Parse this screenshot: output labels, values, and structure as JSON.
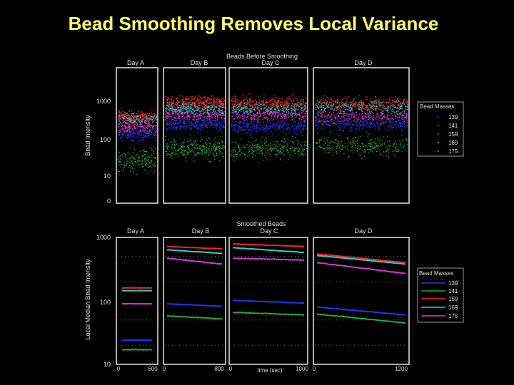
{
  "slide": {
    "title": "Bead Smoothing Removes Local Variance"
  },
  "colors": {
    "background": "#000000",
    "title": "#ffff66",
    "frame": "#e6e6e6",
    "s130": "#2233ff",
    "s141": "#22aa33",
    "s159": "#ff2222",
    "s169": "#33cccc",
    "s175": "#dd33dd"
  },
  "chart_data": [
    {
      "type": "scatter",
      "title": "Beads Before Smoothing",
      "ylabel": "Bead Intensity",
      "yscale": "log",
      "ylim": [
        0,
        3000
      ],
      "yticks": [
        "1000",
        "100",
        "10",
        "0"
      ],
      "panels": [
        "Day A",
        "Day B",
        "Day C",
        "Day D"
      ],
      "legend": {
        "title": "Bead Masses",
        "position": "right",
        "entries": [
          "139",
          "141",
          "159",
          "169",
          "175"
        ]
      },
      "series": [
        {
          "name": "139",
          "color": "#2233ff",
          "levels": [
            140,
            250,
            220,
            260
          ]
        },
        {
          "name": "141",
          "color": "#22aa33",
          "levels": [
            30,
            60,
            60,
            70
          ]
        },
        {
          "name": "159",
          "color": "#ff2222",
          "levels": [
            400,
            950,
            900,
            850
          ]
        },
        {
          "name": "169",
          "color": "#33cccc",
          "levels": [
            350,
            650,
            650,
            720
          ]
        },
        {
          "name": "175",
          "color": "#dd33dd",
          "levels": [
            220,
            450,
            430,
            400
          ]
        }
      ]
    },
    {
      "type": "line",
      "title": "Smoothed Beads",
      "ylabel": "Local Median Bead Intensity",
      "xlabel": "time (sec)",
      "yscale": "log",
      "ylim": [
        10,
        1000
      ],
      "yticks": [
        "1000",
        "100",
        "10"
      ],
      "panels": [
        "Day A",
        "Day B",
        "Day C",
        "Day D"
      ],
      "panel_xticks": [
        [
          "0",
          "600"
        ],
        [
          "0",
          "800"
        ],
        [
          "0",
          "1000"
        ],
        [
          "0",
          "1200"
        ]
      ],
      "legend": {
        "title": "Bead Masses",
        "position": "right",
        "entries": [
          "139",
          "141",
          "159",
          "169",
          "175"
        ]
      },
      "series": [
        {
          "name": "139",
          "color": "#2233ff",
          "values": [
            [
              24,
              24
            ],
            [
              90,
              82
            ],
            [
              102,
              92
            ],
            [
              80,
              60
            ]
          ]
        },
        {
          "name": "141",
          "color": "#22aa33",
          "values": [
            [
              17,
              17
            ],
            [
              58,
              52
            ],
            [
              66,
              60
            ],
            [
              62,
              45
            ]
          ]
        },
        {
          "name": "159",
          "color": "#ff2222",
          "values": [
            [
              160,
              160
            ],
            [
              720,
              660
            ],
            [
              790,
              720
            ],
            [
              550,
              400
            ]
          ]
        },
        {
          "name": "169",
          "color": "#33cccc",
          "values": [
            [
              145,
              145
            ],
            [
              640,
              560
            ],
            [
              690,
              580
            ],
            [
              520,
              380
            ]
          ]
        },
        {
          "name": "175",
          "color": "#dd33dd",
          "values": [
            [
              90,
              90
            ],
            [
              470,
              380
            ],
            [
              470,
              440
            ],
            [
              400,
              270
            ]
          ]
        }
      ]
    }
  ]
}
